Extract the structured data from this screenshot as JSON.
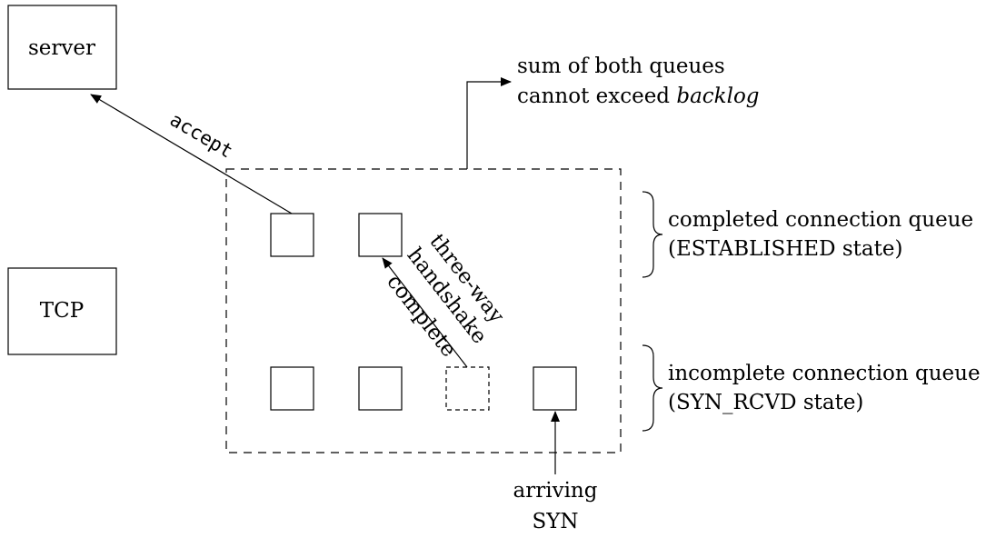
{
  "nodes": {
    "server": "server",
    "tcp": "TCP"
  },
  "edges": {
    "accept": "accept",
    "handshake": {
      "line1": "three-way",
      "line2": "handshake",
      "line3": "complete"
    },
    "arriving_syn": {
      "line1": "arriving",
      "line2": "SYN"
    }
  },
  "annotations": {
    "backlog": {
      "line1": "sum of both queues",
      "line2_prefix": "cannot exceed ",
      "line2_italic": "backlog"
    },
    "completed_queue": {
      "line1": "completed connection queue",
      "line2": "(ESTABLISHED state)"
    },
    "incomplete_queue": {
      "line1": "incomplete connection queue",
      "line2": "(SYN_RCVD state)"
    }
  }
}
